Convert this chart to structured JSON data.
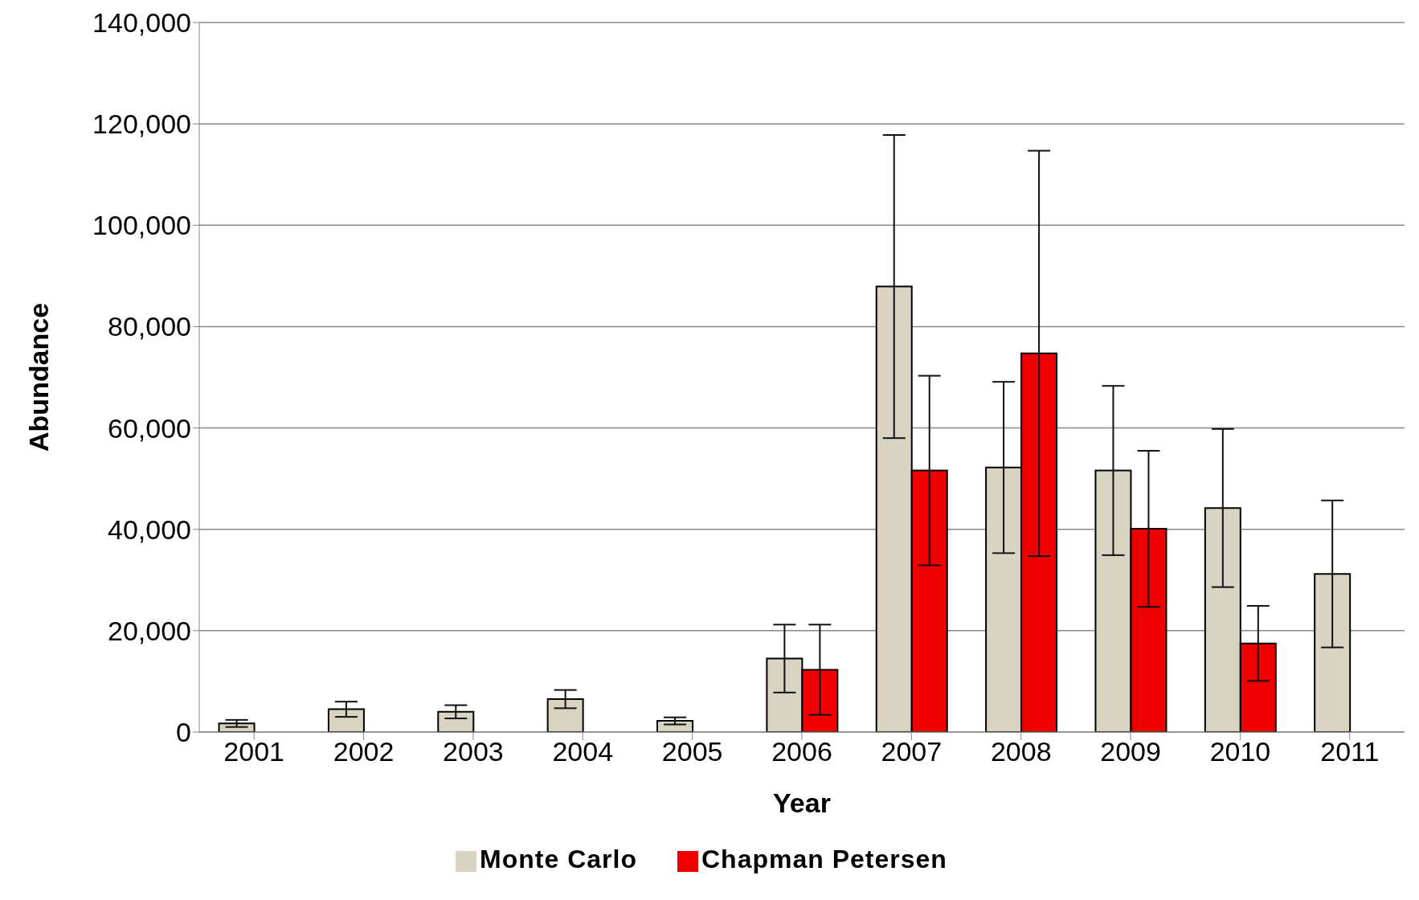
{
  "chart_data": {
    "type": "bar",
    "xlabel": "Year",
    "ylabel": "Abundance",
    "categories": [
      "2001",
      "2002",
      "2003",
      "2004",
      "2005",
      "2006",
      "2007",
      "2008",
      "2009",
      "2010",
      "2011"
    ],
    "series": [
      {
        "name": "Monte Carlo",
        "color": "#d9d4c1",
        "values": [
          1700,
          4500,
          4000,
          6500,
          2200,
          14500,
          87900,
          52200,
          51600,
          44200,
          31200
        ],
        "errors": [
          700,
          1500,
          1300,
          1800,
          700,
          6700,
          29900,
          16900,
          16700,
          15600,
          14500
        ]
      },
      {
        "name": "Chapman Petersen",
        "color": "#ee0000",
        "values": [
          null,
          null,
          null,
          null,
          null,
          12300,
          51600,
          74700,
          40100,
          17500,
          null
        ],
        "errors": [
          null,
          null,
          null,
          null,
          null,
          8900,
          18700,
          40000,
          15400,
          7400,
          null
        ]
      }
    ],
    "ylim": [
      0,
      140000
    ],
    "yticks": [
      {
        "value": 0,
        "label": "0"
      },
      {
        "value": 20000,
        "label": "20,000"
      },
      {
        "value": 40000,
        "label": "40,000"
      },
      {
        "value": 60000,
        "label": "60,000"
      },
      {
        "value": 80000,
        "label": "80,000"
      },
      {
        "value": 100000,
        "label": "100,000"
      },
      {
        "value": 120000,
        "label": "120,000"
      },
      {
        "value": 140000,
        "label": "140,000"
      }
    ],
    "grid": "y",
    "legend": "bottom"
  }
}
